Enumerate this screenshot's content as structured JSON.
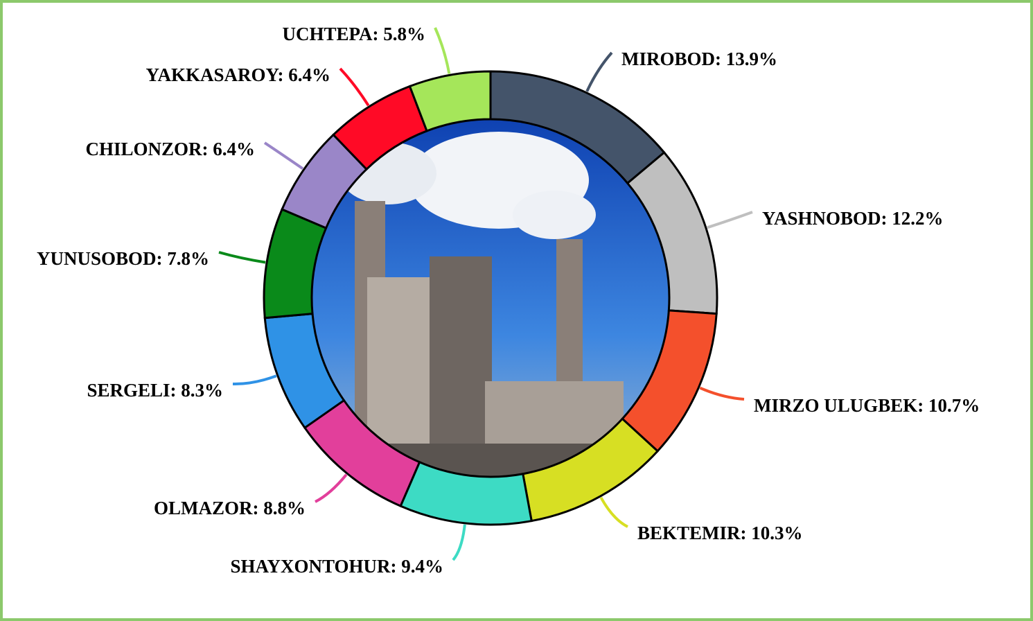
{
  "chart_data": {
    "type": "donut",
    "values": [
      13.9,
      12.2,
      10.7,
      10.3,
      9.4,
      8.8,
      8.3,
      7.8,
      6.4,
      6.4,
      5.8
    ],
    "value_labels": [
      "MIROBOD: 13.9%",
      "YASHNOBOD: 12.2%",
      "MIRZO ULUGBEK: 10.7%",
      "BEKTEMIR: 10.3%",
      "SHAYXONTOHUR: 9.4%",
      "OLMAZOR: 8.8%",
      "SERGELI: 8.3%",
      "YUNUSOBOD: 7.8%",
      "CHILONZOR: 6.4%",
      "YAKKASAROY: 6.4%",
      "UCHTEPA: 5.8%"
    ],
    "colors": [
      "#44546a",
      "#bfbfbf",
      "#f4502c",
      "#d7df23",
      "#3ddbc4",
      "#e23f9b",
      "#2f92e6",
      "#0a8a1a",
      "#9a86c8",
      "#ff0a26",
      "#a5e65a"
    ]
  }
}
